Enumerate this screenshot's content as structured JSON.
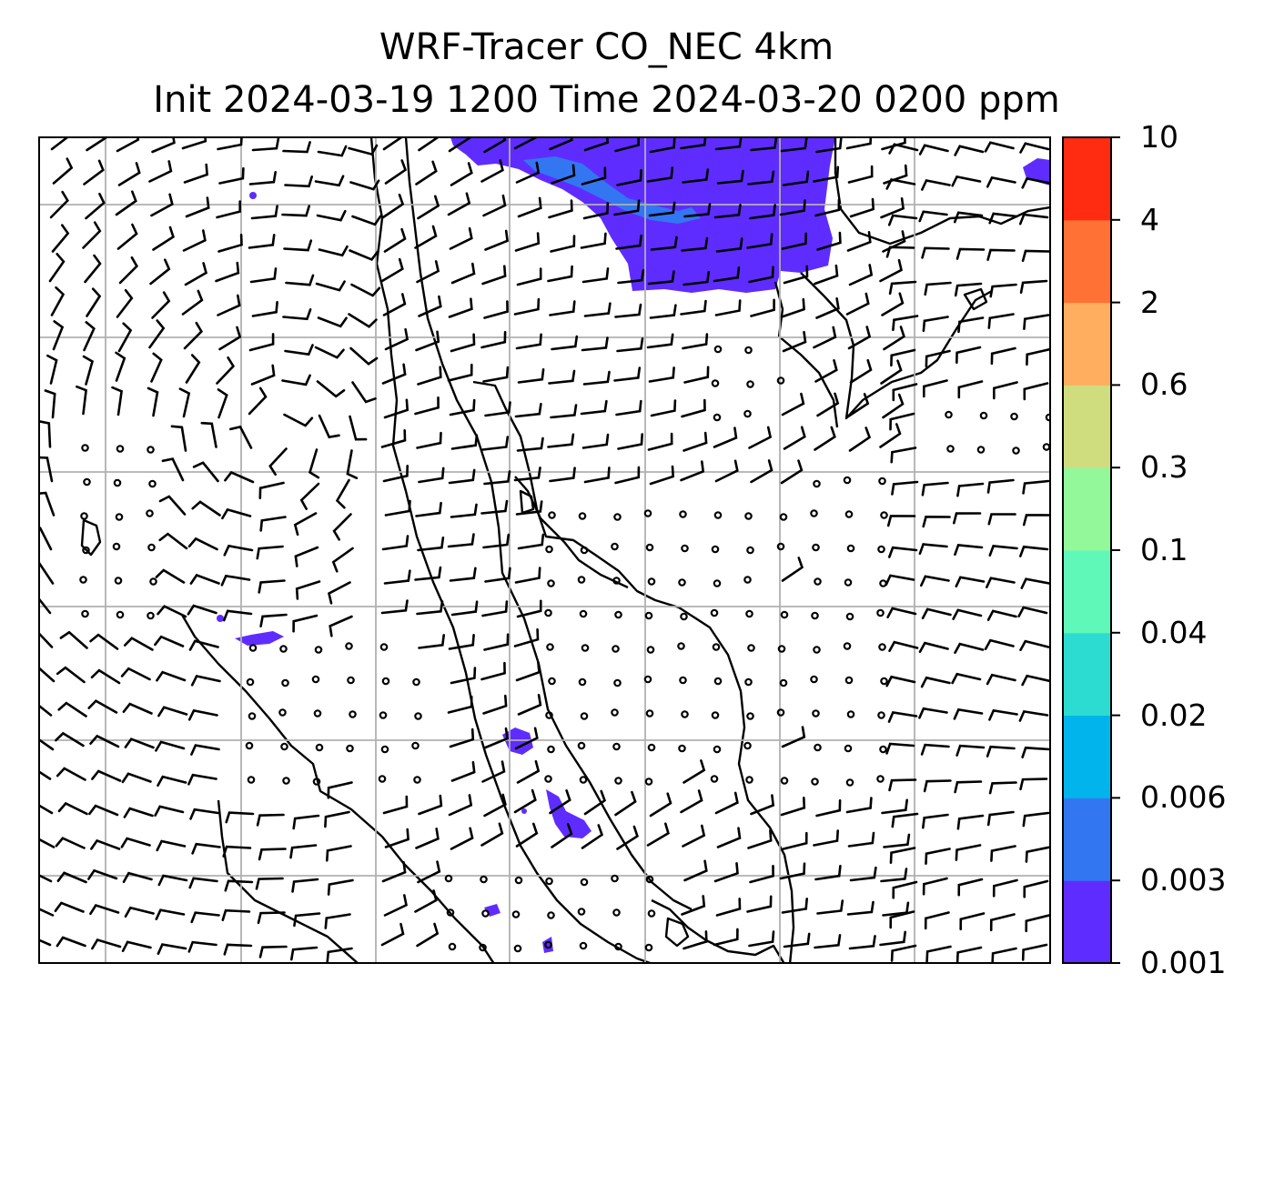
{
  "title": {
    "line1": "WRF-Tracer CO_NEC 4km",
    "line2": "Init 2024-03-19 1200 Time 2024-03-20 0200 ppm"
  },
  "colorbar": {
    "levels": [
      "0.001",
      "0.003",
      "0.006",
      "0.02",
      "0.04",
      "0.1",
      "0.3",
      "0.6",
      "2",
      "4",
      "10"
    ],
    "colors": [
      "#5f2cff",
      "#3376f1",
      "#02b4ec",
      "#2ddcd1",
      "#60f8b9",
      "#92f89a",
      "#cfdd7f",
      "#ffae5f",
      "#ff7135",
      "#ff2c11"
    ]
  },
  "map": {
    "field": "CO_NEC tracer concentration",
    "units": "ppm",
    "overlay": "wind barbs",
    "background": "#ffffff",
    "gridline_color": "#b0b0b0",
    "coastline_color": "#000000"
  }
}
